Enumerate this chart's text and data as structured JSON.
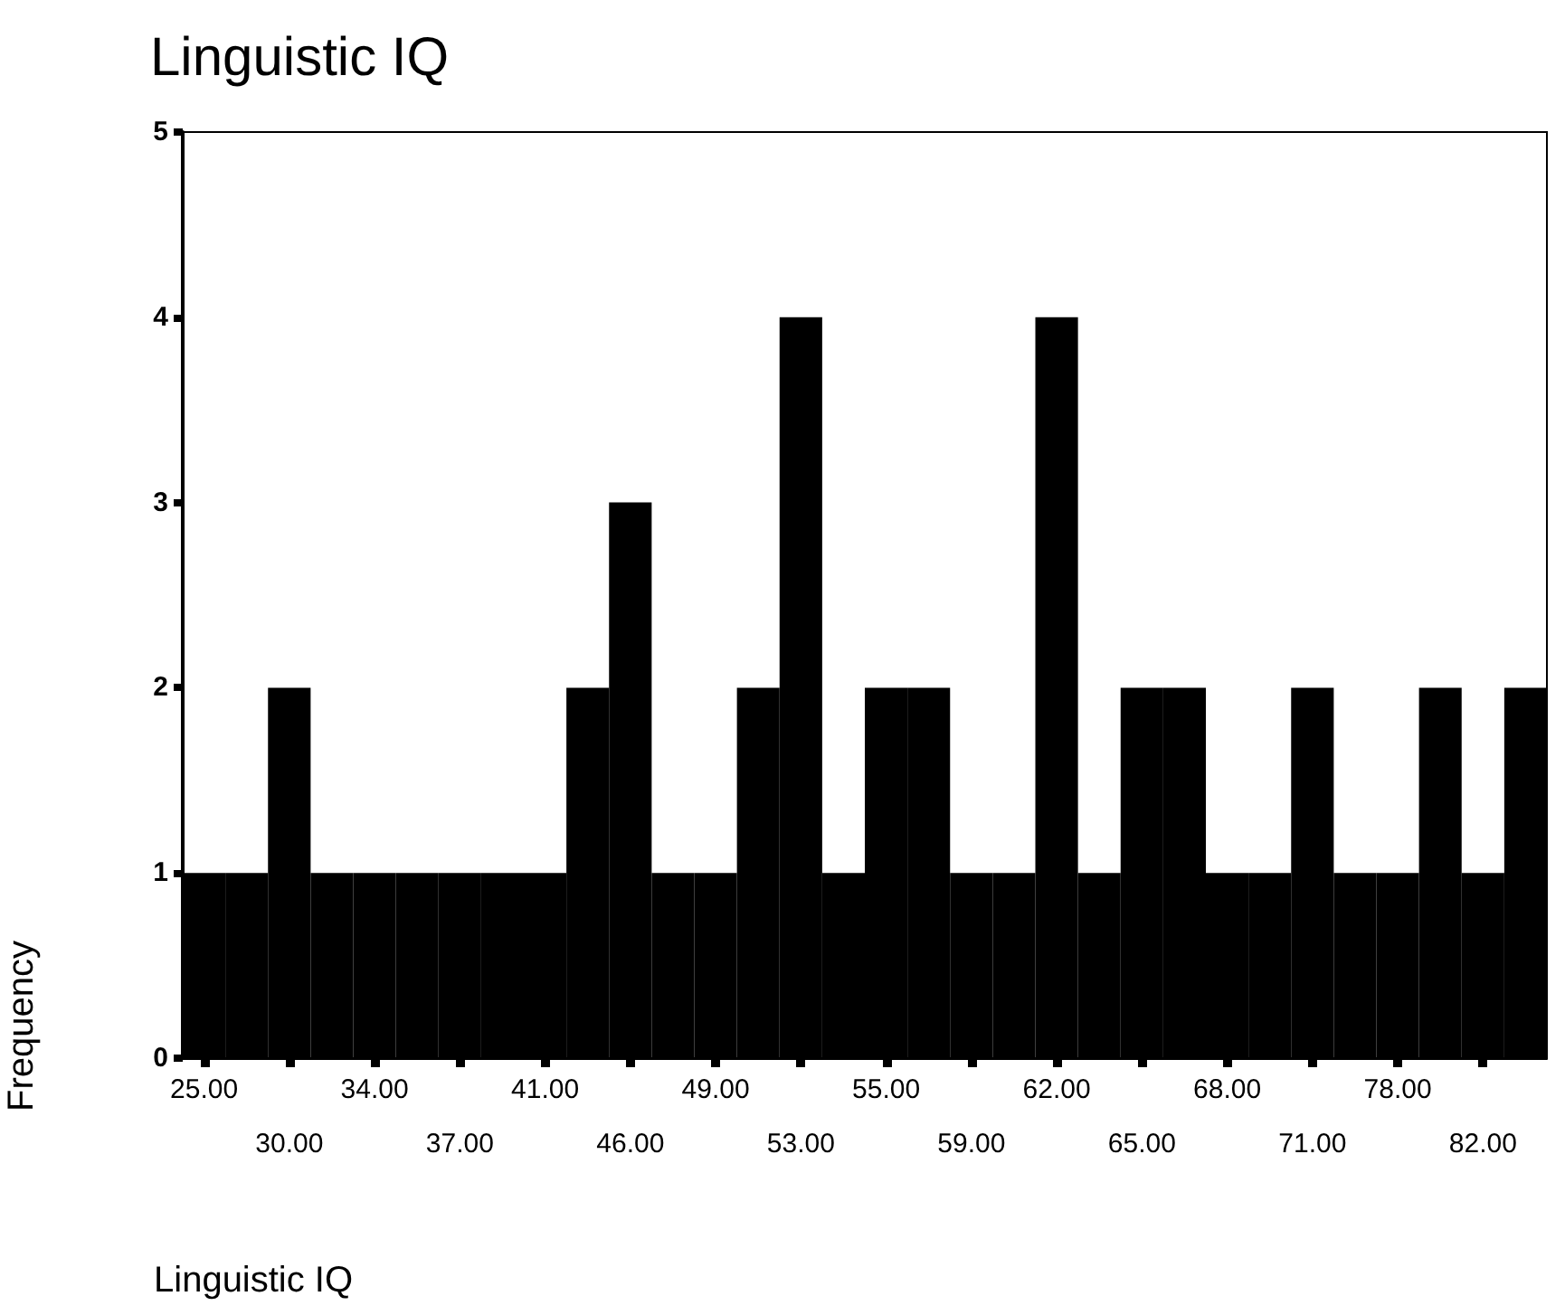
{
  "chart_data": {
    "type": "bar",
    "title": "Linguistic IQ",
    "xlabel": "Linguistic IQ",
    "ylabel": "Frequency",
    "categories": [
      "25.00",
      null,
      "30.00",
      null,
      "34.00",
      null,
      "37.00",
      null,
      "41.00",
      null,
      "46.00",
      null,
      "49.00",
      null,
      "53.00",
      null,
      "55.00",
      null,
      "59.00",
      null,
      "62.00",
      null,
      "65.00",
      null,
      "68.00",
      null,
      "71.00",
      null,
      "78.00",
      null,
      "82.00",
      null
    ],
    "values": [
      1,
      1,
      2,
      1,
      1,
      1,
      1,
      1,
      1,
      2,
      3,
      1,
      1,
      2,
      4,
      1,
      2,
      2,
      1,
      1,
      4,
      1,
      2,
      2,
      1,
      1,
      2,
      1,
      1,
      2,
      1,
      2
    ],
    "color": "#000000",
    "ylim": [
      0,
      5
    ],
    "yticks": [
      0,
      1,
      2,
      3,
      4,
      5
    ],
    "grid": false
  }
}
